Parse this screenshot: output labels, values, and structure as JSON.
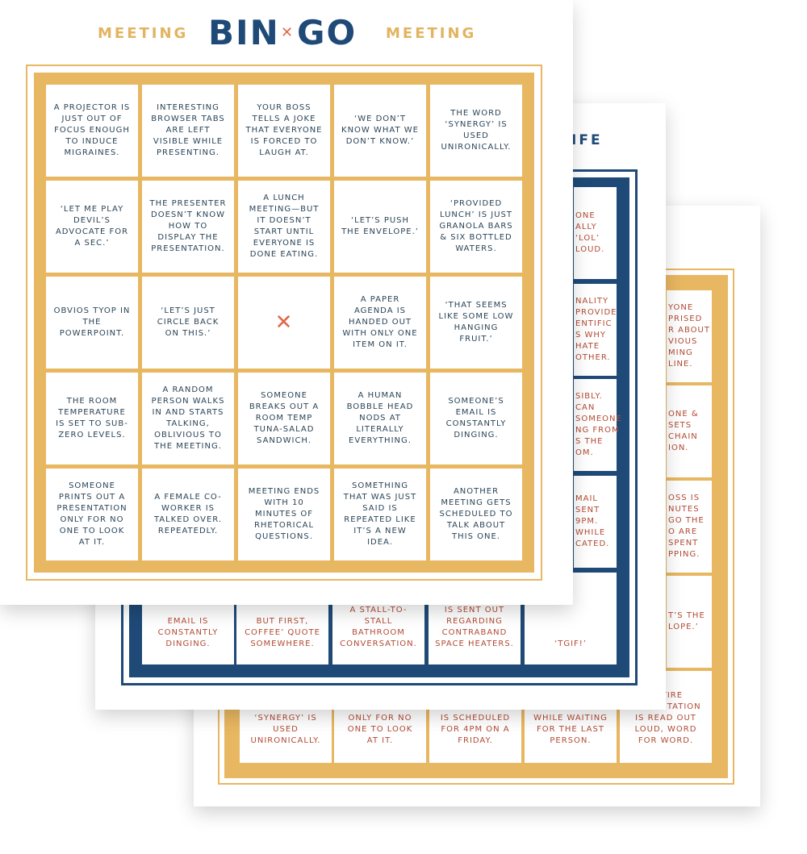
{
  "front_card": {
    "header": {
      "left": "MEETING",
      "title_left": "BIN",
      "title_right": "GO",
      "right": "MEETING"
    },
    "cells": [
      [
        "A PROJECTOR IS JUST OUT OF FOCUS ENOUGH TO INDUCE MIGRAINES.",
        "INTERESTING BROWSER TABS ARE LEFT VISIBLE WHILE PRESENTING.",
        "YOUR BOSS TELLS A JOKE THAT EVERYONE IS FORCED TO LAUGH AT.",
        "‘WE DON’T KNOW WHAT WE DON’T KNOW.’",
        "THE WORD ‘SYNERGY’ IS USED UNIRONICALLY."
      ],
      [
        "‘LET ME PLAY DEVIL’S ADVOCATE FOR A SEC.’",
        "THE PRESENTER DOESN’T KNOW HOW TO DISPLAY THE PRESENTATION.",
        "A LUNCH MEETING—BUT IT DOESN’T START UNTIL EVERYONE IS DONE EATING.",
        "‘LET’S PUSH THE ENVELOPE.’",
        "‘PROVIDED LUNCH’ IS JUST GRANOLA BARS & SIX BOTTLED WATERS."
      ],
      [
        "OBVIOS TYOP IN THE POWERPOINT.",
        "‘LET’S JUST CIRCLE BACK ON THIS.’",
        null,
        "A PAPER AGENDA IS HANDED OUT WITH ONLY ONE ITEM ON IT.",
        "‘THAT SEEMS LIKE SOME LOW HANGING FRUIT.’"
      ],
      [
        "THE ROOM TEMPERATURE IS SET TO SUB-ZERO LEVELS.",
        "A RANDOM PERSON WALKS IN AND STARTS TALKING, OBLIVIOUS TO THE MEETING.",
        "SOMEONE BREAKS OUT A ROOM TEMP TUNA-SALAD SANDWICH.",
        "A HUMAN BOBBLE HEAD NODS AT LITERALLY EVERYTHING.",
        "SOMEONE’S EMAIL IS CONSTANTLY DINGING."
      ],
      [
        "SOMEONE PRINTS OUT A PRESENTATION ONLY FOR NO ONE TO LOOK AT IT.",
        "A FEMALE CO-WORKER IS TALKED OVER. REPEATEDLY.",
        "MEETING ENDS WITH 10 MINUTES OF RHETORICAL QUESTIONS.",
        "SOMETHING THAT WAS JUST SAID IS REPEATED LIKE IT’S A NEW IDEA.",
        "ANOTHER MEETING GETS SCHEDULED TO TALK ABOUT THIS ONE."
      ]
    ]
  },
  "middle_card": {
    "title_fragment": "IFE",
    "right_column": [
      "ONE ALLY ‘LOL’ LOUD.",
      "NALITY PROVIDE ENTIFIC S WHY HATE OTHER.",
      "SIBLY. CAN SOMEONE NG FROM S THE OM.",
      "MAIL SENT 9PM. WHILE CATED."
    ],
    "bottom_row": [
      "EMAIL IS CONSTANTLY DINGING.",
      "BUT FIRST, COFFEE’ QUOTE SOMEWHERE.",
      "A STALL-TO-STALL BATHROOM CONVERSATION.",
      "IS SENT OUT REGARDING CONTRABAND SPACE HEATERS.",
      "‘TGIF!’"
    ]
  },
  "back_card": {
    "right_column": [
      "YONE PRISED R ABOUT VIOUS MING LINE.",
      "ONE & SETS CHAIN ION.",
      "OSS IS NUTES GO THE O ARE SPENT PPING.",
      "T’S THE LOPE.’"
    ],
    "bottom_row": [
      "‘SYNERGY’ IS USED UNIRONICALLY.",
      "PRESENTATION ONLY FOR NO ONE TO LOOK AT IT.",
      "IS SCHEDULED FOR 4PM ON A FRIDAY.",
      "SMALL TALK WHILE WAITING FOR THE LAST PERSON.",
      "ENTIRE PRESENTATION IS READ OUT LOUD, WORD FOR WORD."
    ]
  }
}
